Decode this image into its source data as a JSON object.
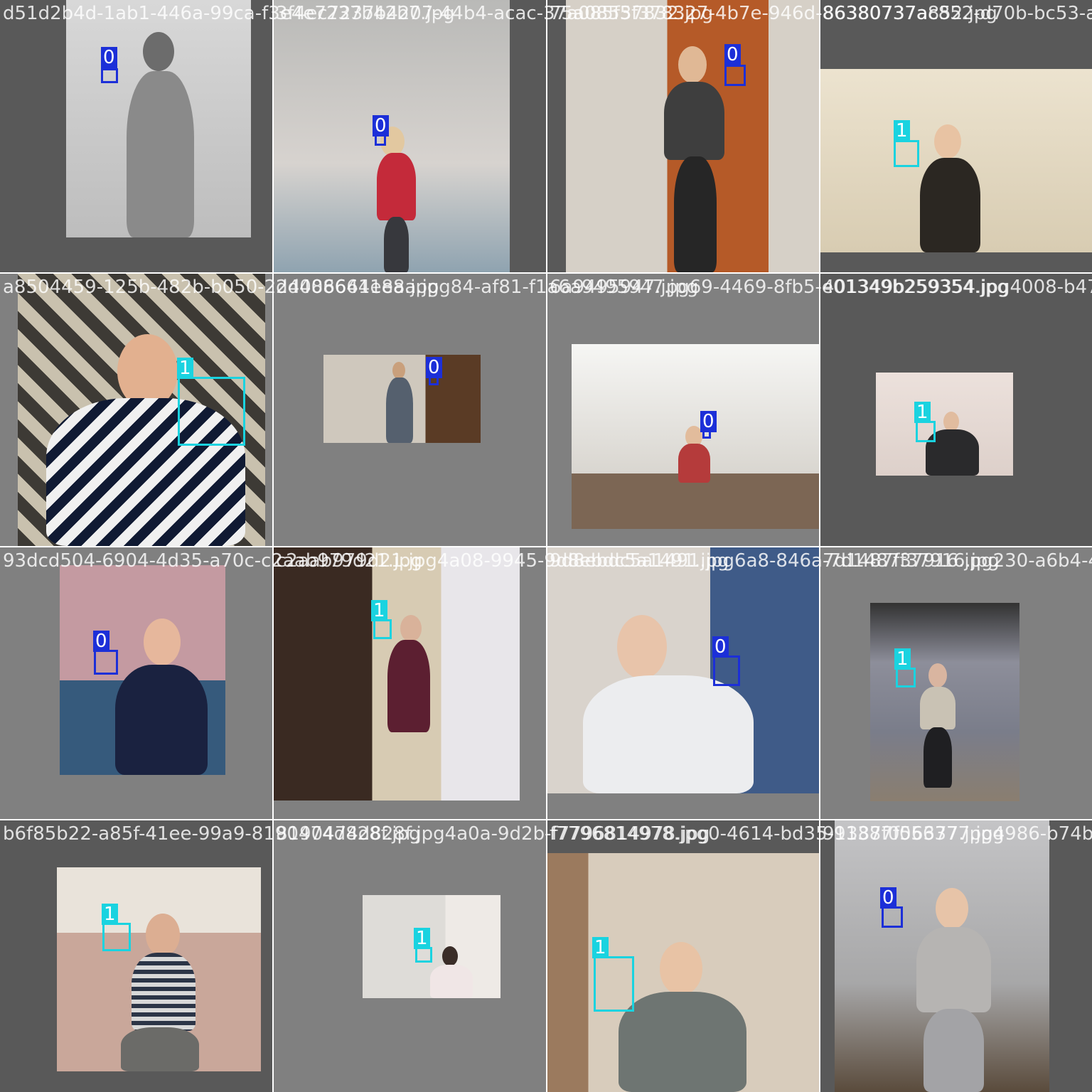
{
  "colors": {
    "class0": "#1c2fd8",
    "class1": "#1ad3e0",
    "canvas": "#ffffff"
  },
  "tiles": [
    {
      "filename": "d51d2b4d-1ab1-446a-99ca-f3e4e7237b42b7.jpg",
      "label": "0",
      "cls": "0"
    },
    {
      "filename": "3f4ec7237b4207-44b4-acac-37a085f37832.jpg",
      "label": "0",
      "cls": "0"
    },
    {
      "filename": "75a0855f378327-4b7e-946d-86380737a852.jpg",
      "label": "0",
      "cls": "0"
    },
    {
      "filename": "86380737ac852-d70b-bc53-a.jpg",
      "label": "1",
      "cls": "1"
    },
    {
      "filename": "a8504459-125b-482b-b050-2d4086641e8a.jpg",
      "label": "1",
      "cls": "1"
    },
    {
      "filename": "2d4086641e8a.jpg84-af81-f1a6a9495947.jpg",
      "label": "0",
      "cls": "0"
    },
    {
      "filename": "6a9495947.jpg69-4469-8fb5-e01349b259354.jpg",
      "label": "0",
      "cls": "0"
    },
    {
      "filename": "401349b259354.jpg4008-b474-",
      "label": "1",
      "cls": "1"
    },
    {
      "filename": "93dcd504-6904-4d35-a70c-c2aab979d21.jpg",
      "label": "0",
      "cls": "0"
    },
    {
      "filename": "c2aab979d21.jpg4a08-9945-9d8ebdc5a1491.jpg",
      "label": "1",
      "cls": "1"
    },
    {
      "filename": "9d8ebdc5a1491.jpg6a8-846a-7d1487f37916.jpg",
      "label": "0",
      "cls": "0"
    },
    {
      "filename": "7d1487f37916.jpg230-a6b4-4",
      "label": "1",
      "cls": "1"
    },
    {
      "filename": "b6f85b22-a85f-41ee-99a9-8190474d828f.jpg",
      "label": "1",
      "cls": "1"
    },
    {
      "filename": "8190474d828f.jpg4a0a-9d2b-f7796814978.jpg",
      "label": "1",
      "cls": "1"
    },
    {
      "filename": "f7796814978.jpg0-4614-bd35-91387f056377.jpg",
      "label": "1",
      "cls": "1"
    },
    {
      "filename": "91387f056377.jpg4986-b74b-",
      "label": "0",
      "cls": "0"
    }
  ]
}
